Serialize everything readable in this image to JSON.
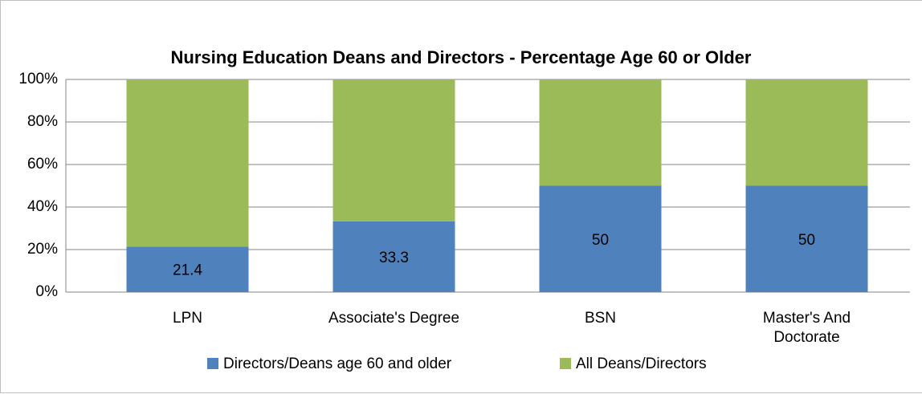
{
  "chart_data": {
    "type": "stacked_bar",
    "title": "Nursing Education Deans and Directors - Percentage Age 60 or Older",
    "categories": [
      "LPN",
      "Associate's Degree",
      "BSN",
      "Master's And Doctorate"
    ],
    "series": [
      {
        "name": "Directors/Deans age 60 and older",
        "color": "#4f81bd",
        "values": [
          21.4,
          33.3,
          50,
          50
        ]
      },
      {
        "name": "All Deans/Directors",
        "color": "#9bbb59",
        "values": [
          78.6,
          66.7,
          50,
          50
        ]
      }
    ],
    "data_labels_series": 0,
    "ylim": [
      0,
      100
    ],
    "yticks": [
      {
        "value": 0,
        "label": "0%"
      },
      {
        "value": 20,
        "label": "20%"
      },
      {
        "value": 40,
        "label": "40%"
      },
      {
        "value": 60,
        "label": "60%"
      },
      {
        "value": 80,
        "label": "80%"
      },
      {
        "value": 100,
        "label": "100%"
      }
    ],
    "grid": true,
    "legend": "bottom"
  }
}
